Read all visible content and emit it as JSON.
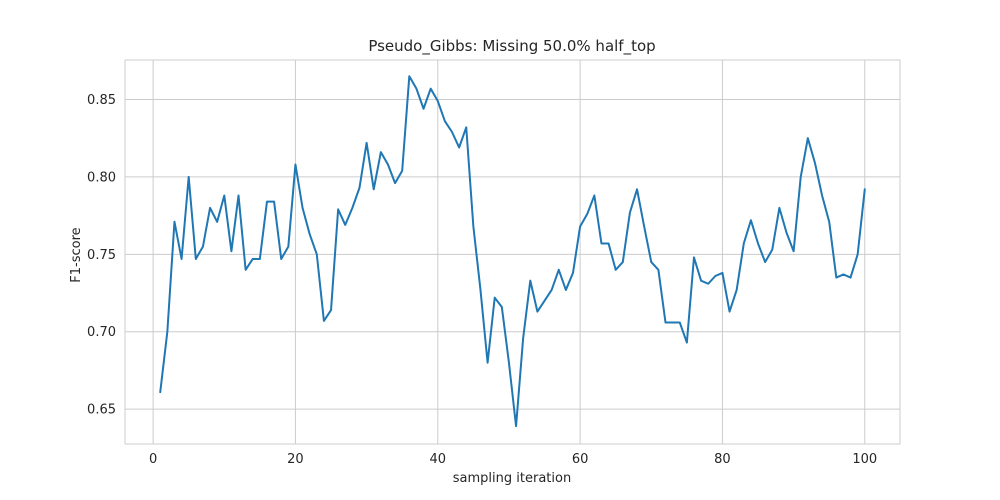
{
  "chart_data": {
    "type": "line",
    "title": "Pseudo_Gibbs: Missing 50.0% half_top",
    "xlabel": "sampling iteration",
    "ylabel": "F1-score",
    "xlim": [
      -3.95,
      104.95
    ],
    "ylim": [
      0.6275,
      0.8755
    ],
    "xticks": [
      0,
      20,
      40,
      60,
      80,
      100
    ],
    "yticks": [
      0.65,
      0.7,
      0.75,
      0.8,
      0.85
    ],
    "xtick_labels": [
      "0",
      "20",
      "40",
      "60",
      "80",
      "100"
    ],
    "ytick_labels": [
      "0.65",
      "0.70",
      "0.75",
      "0.80",
      "0.85"
    ],
    "grid": true,
    "colors": {
      "line": "#1f77b4",
      "grid": "#cccccc",
      "frame": "#cccccc",
      "text": "#262626"
    },
    "series": [
      {
        "x": [
          1,
          2,
          3,
          4,
          5,
          6,
          7,
          8,
          9,
          10,
          11,
          12,
          13,
          14,
          15,
          16,
          17,
          18,
          19,
          20,
          21,
          22,
          23,
          24,
          25,
          26,
          27,
          28,
          29,
          30,
          31,
          32,
          33,
          34,
          35,
          36,
          37,
          38,
          39,
          40,
          41,
          42,
          43,
          44,
          45,
          46,
          47,
          48,
          49,
          50,
          51,
          52,
          53,
          54,
          55,
          56,
          57,
          58,
          59,
          60,
          61,
          62,
          63,
          64,
          65,
          66,
          67,
          68,
          69,
          70,
          71,
          72,
          73,
          74,
          75,
          76,
          77,
          78,
          79,
          80,
          81,
          82,
          83,
          84,
          85,
          86,
          87,
          88,
          89,
          90,
          91,
          92,
          93,
          94,
          95,
          96,
          97,
          98,
          99,
          100
        ],
        "values": [
          0.661,
          0.7,
          0.771,
          0.747,
          0.8,
          0.747,
          0.755,
          0.78,
          0.771,
          0.788,
          0.752,
          0.788,
          0.74,
          0.747,
          0.747,
          0.784,
          0.784,
          0.747,
          0.755,
          0.808,
          0.78,
          0.763,
          0.75,
          0.707,
          0.714,
          0.779,
          0.769,
          0.78,
          0.793,
          0.822,
          0.792,
          0.816,
          0.808,
          0.796,
          0.804,
          0.865,
          0.857,
          0.844,
          0.857,
          0.849,
          0.836,
          0.829,
          0.819,
          0.832,
          0.768,
          0.727,
          0.68,
          0.722,
          0.716,
          0.68,
          0.639,
          0.696,
          0.733,
          0.713,
          0.72,
          0.727,
          0.74,
          0.727,
          0.738,
          0.768,
          0.776,
          0.788,
          0.757,
          0.757,
          0.74,
          0.745,
          0.777,
          0.792,
          0.768,
          0.745,
          0.74,
          0.706,
          0.706,
          0.706,
          0.693,
          0.748,
          0.733,
          0.731,
          0.736,
          0.738,
          0.713,
          0.727,
          0.757,
          0.772,
          0.757,
          0.745,
          0.753,
          0.78,
          0.764,
          0.752,
          0.8,
          0.825,
          0.809,
          0.788,
          0.771,
          0.735,
          0.737,
          0.735,
          0.75,
          0.792
        ]
      }
    ]
  }
}
